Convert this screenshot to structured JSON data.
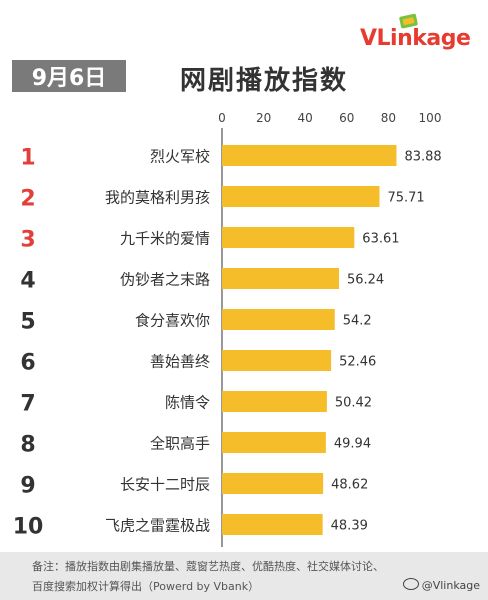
{
  "brand": {
    "name": "VLinkage",
    "v": "V",
    "rest": "Linkage"
  },
  "date_label": "9月6日",
  "title": "网剧播放指数",
  "colors": {
    "bar": "#f6bd2b",
    "rank_top": "#e23f3a",
    "rank_other": "#333333",
    "badge": "#7a7a7a"
  },
  "footer": {
    "line1": "备注：播放指数由剧集播放量、蔻窗艺热度、优酷热度、社交媒体讨论、",
    "line2": "百度搜索加权计算得出（Powerd by Vbank）",
    "weibo": "@Vlinkage"
  },
  "chart_data": {
    "type": "bar",
    "orientation": "horizontal",
    "ranks": [
      "1",
      "2",
      "3",
      "4",
      "5",
      "6",
      "7",
      "8",
      "9",
      "10"
    ],
    "categories": [
      "烈火军校",
      "我的莫格利男孩",
      "九千米的爱情",
      "伪钞者之末路",
      "食分喜欢你",
      "善始善终",
      "陈情令",
      "全职高手",
      "长安十二时辰",
      "飞虎之雷霆极战"
    ],
    "values": [
      83.88,
      75.71,
      63.61,
      56.24,
      54.2,
      52.46,
      50.42,
      49.94,
      48.62,
      48.39
    ],
    "value_labels": [
      "83.88",
      "75.71",
      "63.61",
      "56.24",
      "54.2",
      "52.46",
      "50.42",
      "49.94",
      "48.62",
      "48.39"
    ],
    "xlim": [
      0,
      100
    ],
    "xticks": [
      "0",
      "20",
      "40",
      "60",
      "80",
      "100"
    ],
    "grid": false
  }
}
